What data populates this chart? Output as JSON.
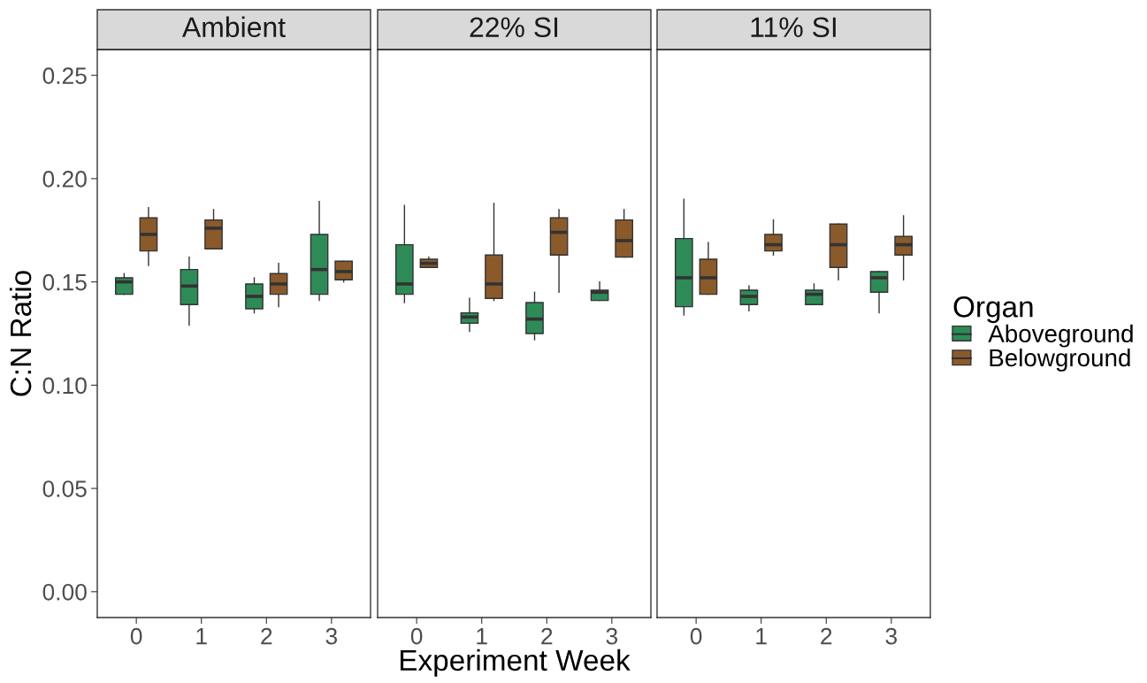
{
  "chart_data": [
    {
      "type": "box",
      "title": "Ambient",
      "ylabel": "C:N Ratio",
      "categories": [
        "0",
        "1",
        "2",
        "3"
      ],
      "ylim": [
        -0.0125,
        0.2625
      ],
      "yticks": [
        {
          "value": 0,
          "label": "0.00"
        },
        {
          "value": 0.05,
          "label": "0.05"
        },
        {
          "value": 0.1,
          "label": "0.10"
        },
        {
          "value": 0.15,
          "label": "0.15"
        },
        {
          "value": 0.2,
          "label": "0.20"
        },
        {
          "value": 0.25,
          "label": "0.25"
        }
      ],
      "grid": false,
      "legend": "right",
      "legend_title": "Organ",
      "series": [
        {
          "name": "Aboveground",
          "color": "#2e8b57",
          "boxes": [
            {
              "low": 0.144,
              "q1": 0.144,
              "median": 0.15,
              "q3": 0.152,
              "high": 0.154
            },
            {
              "low": 0.129,
              "q1": 0.139,
              "median": 0.148,
              "q3": 0.156,
              "high": 0.162
            },
            {
              "low": 0.135,
              "q1": 0.137,
              "median": 0.143,
              "q3": 0.149,
              "high": 0.152
            },
            {
              "low": 0.141,
              "q1": 0.144,
              "median": 0.156,
              "q3": 0.173,
              "high": 0.189
            }
          ]
        },
        {
          "name": "Belowground",
          "color": "#8b5a2b",
          "boxes": [
            {
              "low": 0.158,
              "q1": 0.165,
              "median": 0.173,
              "q3": 0.181,
              "high": 0.186
            },
            {
              "low": 0.166,
              "q1": 0.166,
              "median": 0.176,
              "q3": 0.18,
              "high": 0.185
            },
            {
              "low": 0.138,
              "q1": 0.144,
              "median": 0.149,
              "q3": 0.154,
              "high": 0.159
            },
            {
              "low": 0.15,
              "q1": 0.151,
              "median": 0.155,
              "q3": 0.16,
              "high": 0.16
            }
          ]
        }
      ]
    },
    {
      "type": "box",
      "title": "22% SI",
      "xlabel": "Experiment Week",
      "categories": [
        "0",
        "1",
        "2",
        "3"
      ],
      "ylim": [
        -0.0125,
        0.2625
      ],
      "grid": false,
      "tick_labels": "x",
      "series": [
        {
          "color": "#2e8b57",
          "boxes": [
            {
              "low": 0.14,
              "q1": 0.144,
              "median": 0.149,
              "q3": 0.168,
              "high": 0.187
            },
            {
              "low": 0.126,
              "q1": 0.13,
              "median": 0.133,
              "q3": 0.135,
              "high": 0.142
            },
            {
              "low": 0.122,
              "q1": 0.125,
              "median": 0.132,
              "q3": 0.14,
              "high": 0.145
            },
            {
              "low": 0.141,
              "q1": 0.141,
              "median": 0.145,
              "q3": 0.146,
              "high": 0.15
            }
          ]
        },
        {
          "color": "#8b5a2b",
          "boxes": [
            {
              "low": 0.157,
              "q1": 0.157,
              "median": 0.159,
              "q3": 0.161,
              "high": 0.162
            },
            {
              "low": 0.141,
              "q1": 0.142,
              "median": 0.149,
              "q3": 0.163,
              "high": 0.188
            },
            {
              "low": 0.145,
              "q1": 0.163,
              "median": 0.174,
              "q3": 0.181,
              "high": 0.185
            },
            {
              "low": 0.162,
              "q1": 0.162,
              "median": 0.17,
              "q3": 0.18,
              "high": 0.185
            }
          ]
        }
      ]
    },
    {
      "type": "box",
      "title": "11% SI",
      "categories": [
        "0",
        "1",
        "2",
        "3"
      ],
      "ylim": [
        -0.0125,
        0.2625
      ],
      "grid": false,
      "tick_labels": "x",
      "series": [
        {
          "color": "#2e8b57",
          "boxes": [
            {
              "low": 0.134,
              "q1": 0.138,
              "median": 0.152,
              "q3": 0.171,
              "high": 0.19
            },
            {
              "low": 0.136,
              "q1": 0.139,
              "median": 0.143,
              "q3": 0.146,
              "high": 0.148
            },
            {
              "low": 0.139,
              "q1": 0.139,
              "median": 0.144,
              "q3": 0.146,
              "high": 0.149
            },
            {
              "low": 0.135,
              "q1": 0.145,
              "median": 0.152,
              "q3": 0.155,
              "high": 0.155
            }
          ]
        },
        {
          "color": "#8b5a2b",
          "boxes": [
            {
              "low": 0.144,
              "q1": 0.144,
              "median": 0.152,
              "q3": 0.161,
              "high": 0.169
            },
            {
              "low": 0.163,
              "q1": 0.165,
              "median": 0.168,
              "q3": 0.173,
              "high": 0.18
            },
            {
              "low": 0.151,
              "q1": 0.157,
              "median": 0.168,
              "q3": 0.178,
              "high": 0.178
            },
            {
              "low": 0.151,
              "q1": 0.163,
              "median": 0.168,
              "q3": 0.172,
              "high": 0.182
            }
          ]
        }
      ]
    }
  ]
}
